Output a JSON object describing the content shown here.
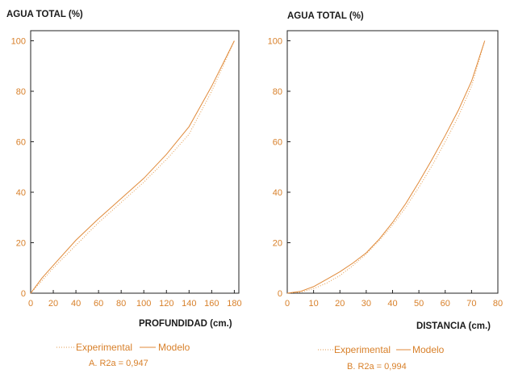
{
  "colors": {
    "axis": "#222222",
    "tick": "#d8802a",
    "experimental": "#e39a4c",
    "modelo": "#e08a3a",
    "title": "#1a1a1a"
  },
  "chart_data": [
    {
      "type": "line",
      "title": "",
      "ylabel": "AGUA TOTAL (%)",
      "xlabel": "PROFUNDIDAD (cm.)",
      "xlim": [
        0,
        184
      ],
      "ylim": [
        0,
        104
      ],
      "xticks": [
        0,
        20,
        40,
        60,
        80,
        100,
        120,
        140,
        160,
        180
      ],
      "yticks": [
        0,
        20,
        40,
        60,
        80,
        100
      ],
      "series": [
        {
          "name": "Experimental",
          "style": "dotted",
          "x": [
            0,
            10,
            20,
            40,
            60,
            80,
            100,
            120,
            140,
            160,
            180
          ],
          "y": [
            0,
            5,
            10,
            19,
            28,
            36,
            44,
            53,
            63,
            80,
            100
          ]
        },
        {
          "name": "Modelo",
          "style": "solid",
          "x": [
            0,
            10,
            20,
            40,
            60,
            80,
            100,
            120,
            140,
            160,
            180
          ],
          "y": [
            0,
            6,
            11,
            21,
            29.5,
            37.5,
            45.5,
            55,
            66,
            82,
            100
          ]
        }
      ],
      "legend": [
        "Experimental",
        "Modelo"
      ],
      "caption": "A.   R2a = 0,947"
    },
    {
      "type": "line",
      "title": "",
      "ylabel": "AGUA TOTAL (%)",
      "xlabel": "DISTANCIA (cm.)",
      "xlim": [
        0,
        80
      ],
      "ylim": [
        0,
        104
      ],
      "xticks": [
        0,
        10,
        20,
        30,
        40,
        50,
        60,
        70,
        80
      ],
      "yticks": [
        0,
        20,
        40,
        60,
        80,
        100
      ],
      "series": [
        {
          "name": "Experimental",
          "style": "dotted",
          "x": [
            0,
            5,
            10,
            15,
            20,
            25,
            30,
            35,
            40,
            45,
            50,
            55,
            60,
            65,
            70,
            75
          ],
          "y": [
            0,
            0.4,
            1.8,
            4,
            7,
            11,
            15.5,
            21,
            27,
            34,
            42,
            50.5,
            60,
            70,
            82,
            100
          ]
        },
        {
          "name": "Modelo",
          "style": "solid",
          "x": [
            0,
            5,
            10,
            15,
            20,
            25,
            30,
            35,
            40,
            45,
            50,
            55,
            60,
            65,
            70,
            75
          ],
          "y": [
            0,
            0.7,
            2.6,
            5.5,
            8.5,
            12,
            16,
            21.5,
            28,
            35.5,
            44,
            53,
            62.5,
            72.5,
            84,
            100
          ]
        }
      ],
      "legend": [
        "Experimental",
        "Modelo"
      ],
      "caption": "B.   R2a = 0,994"
    }
  ]
}
